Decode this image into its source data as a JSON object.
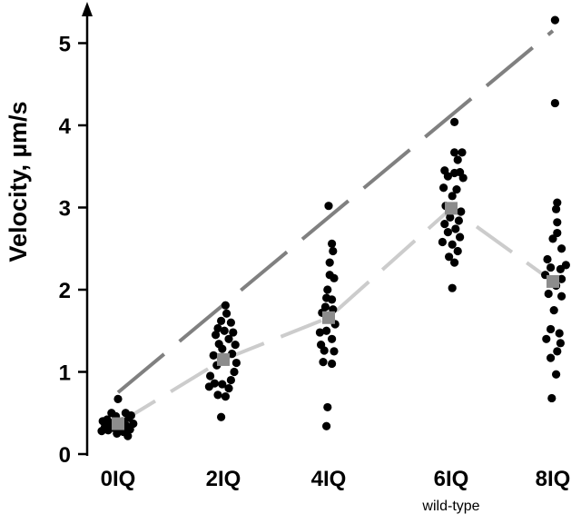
{
  "chart_data": {
    "type": "scatter",
    "title": "",
    "xlabel": "",
    "ylabel": "Velocity, µm/s",
    "ylim": [
      0,
      5.4
    ],
    "yticks": [
      0,
      1,
      2,
      3,
      4,
      5
    ],
    "grid": false,
    "legend": "none",
    "categories": [
      "0IQ",
      "2IQ",
      "4IQ",
      "6IQ",
      "8IQ"
    ],
    "category_sublabels": [
      "",
      "",
      "",
      "wild-type",
      ""
    ],
    "colors": {
      "points": "#000000",
      "mean": "#8c8c8c",
      "mean_line": "#cccccc",
      "trend_line": "#808080"
    },
    "series": [
      {
        "category": "0IQ",
        "points": [
          {
            "offset": 0.0,
            "y": 0.67
          },
          {
            "offset": -0.12,
            "y": 0.5
          },
          {
            "offset": 0.14,
            "y": 0.5
          },
          {
            "offset": 0.24,
            "y": 0.47
          },
          {
            "offset": -0.04,
            "y": 0.46
          },
          {
            "offset": 0.2,
            "y": 0.44
          },
          {
            "offset": -0.2,
            "y": 0.42
          },
          {
            "offset": -0.28,
            "y": 0.4
          },
          {
            "offset": 0.08,
            "y": 0.4
          },
          {
            "offset": -0.14,
            "y": 0.38
          },
          {
            "offset": 0.28,
            "y": 0.37
          },
          {
            "offset": 0.14,
            "y": 0.35
          },
          {
            "offset": -0.24,
            "y": 0.33
          },
          {
            "offset": -0.08,
            "y": 0.32
          },
          {
            "offset": 0.04,
            "y": 0.3
          },
          {
            "offset": 0.22,
            "y": 0.3
          },
          {
            "offset": -0.18,
            "y": 0.29
          },
          {
            "offset": -0.3,
            "y": 0.28
          },
          {
            "offset": 0.1,
            "y": 0.27
          },
          {
            "offset": -0.02,
            "y": 0.25
          },
          {
            "offset": 0.18,
            "y": 0.22
          }
        ],
        "mean": 0.37
      },
      {
        "category": "2IQ",
        "points": [
          {
            "offset": 0.04,
            "y": 1.81
          },
          {
            "offset": 0.06,
            "y": 1.71
          },
          {
            "offset": -0.04,
            "y": 1.62
          },
          {
            "offset": 0.14,
            "y": 1.6
          },
          {
            "offset": -0.1,
            "y": 1.53
          },
          {
            "offset": 0.02,
            "y": 1.5
          },
          {
            "offset": 0.18,
            "y": 1.48
          },
          {
            "offset": -0.14,
            "y": 1.45
          },
          {
            "offset": 0.1,
            "y": 1.4
          },
          {
            "offset": -0.08,
            "y": 1.34
          },
          {
            "offset": 0.22,
            "y": 1.33
          },
          {
            "offset": -0.02,
            "y": 1.28
          },
          {
            "offset": 0.16,
            "y": 1.22
          },
          {
            "offset": -0.18,
            "y": 1.2
          },
          {
            "offset": 0.24,
            "y": 1.11
          },
          {
            "offset": -0.12,
            "y": 1.08
          },
          {
            "offset": 0.2,
            "y": 1.0
          },
          {
            "offset": -0.24,
            "y": 0.95
          },
          {
            "offset": 0.14,
            "y": 0.9
          },
          {
            "offset": -0.16,
            "y": 0.86
          },
          {
            "offset": -0.02,
            "y": 0.85
          },
          {
            "offset": 0.1,
            "y": 0.8
          },
          {
            "offset": -0.26,
            "y": 0.82
          },
          {
            "offset": -0.1,
            "y": 0.72
          },
          {
            "offset": 0.04,
            "y": 0.7
          },
          {
            "offset": -0.04,
            "y": 0.45
          }
        ],
        "mean": 1.15
      },
      {
        "category": "4IQ",
        "points": [
          {
            "offset": 0.0,
            "y": 3.02
          },
          {
            "offset": 0.06,
            "y": 2.56
          },
          {
            "offset": 0.08,
            "y": 2.47
          },
          {
            "offset": 0.02,
            "y": 2.33
          },
          {
            "offset": 0.02,
            "y": 2.18
          },
          {
            "offset": 0.1,
            "y": 2.14
          },
          {
            "offset": -0.02,
            "y": 2.0
          },
          {
            "offset": -0.04,
            "y": 1.9
          },
          {
            "offset": 0.06,
            "y": 1.88
          },
          {
            "offset": -0.06,
            "y": 1.79
          },
          {
            "offset": 0.08,
            "y": 1.76
          },
          {
            "offset": -0.12,
            "y": 1.72
          },
          {
            "offset": 0.12,
            "y": 1.58
          },
          {
            "offset": -0.16,
            "y": 1.48
          },
          {
            "offset": -0.04,
            "y": 1.5
          },
          {
            "offset": 0.06,
            "y": 1.4
          },
          {
            "offset": -0.14,
            "y": 1.33
          },
          {
            "offset": -0.08,
            "y": 1.26
          },
          {
            "offset": 0.1,
            "y": 1.25
          },
          {
            "offset": -0.1,
            "y": 1.12
          },
          {
            "offset": 0.06,
            "y": 1.1
          },
          {
            "offset": -0.02,
            "y": 0.57
          },
          {
            "offset": -0.04,
            "y": 0.34
          }
        ],
        "mean": 1.66
      },
      {
        "category": "6IQ",
        "points": [
          {
            "offset": 0.06,
            "y": 4.04
          },
          {
            "offset": 0.06,
            "y": 3.67
          },
          {
            "offset": 0.2,
            "y": 3.67
          },
          {
            "offset": 0.12,
            "y": 3.58
          },
          {
            "offset": -0.12,
            "y": 3.45
          },
          {
            "offset": 0.06,
            "y": 3.42
          },
          {
            "offset": 0.16,
            "y": 3.43
          },
          {
            "offset": -0.06,
            "y": 3.38
          },
          {
            "offset": 0.22,
            "y": 3.36
          },
          {
            "offset": -0.14,
            "y": 3.24
          },
          {
            "offset": 0.1,
            "y": 3.22
          },
          {
            "offset": 0.02,
            "y": 3.14
          },
          {
            "offset": -0.1,
            "y": 3.02
          },
          {
            "offset": 0.18,
            "y": 2.95
          },
          {
            "offset": -0.02,
            "y": 2.88
          },
          {
            "offset": 0.14,
            "y": 2.84
          },
          {
            "offset": -0.12,
            "y": 2.8
          },
          {
            "offset": 0.08,
            "y": 2.74
          },
          {
            "offset": -0.06,
            "y": 2.7
          },
          {
            "offset": 0.16,
            "y": 2.64
          },
          {
            "offset": -0.16,
            "y": 2.58
          },
          {
            "offset": 0.02,
            "y": 2.55
          },
          {
            "offset": 0.12,
            "y": 2.47
          },
          {
            "offset": -0.04,
            "y": 2.4
          },
          {
            "offset": 0.06,
            "y": 2.33
          },
          {
            "offset": 0.02,
            "y": 2.02
          }
        ],
        "mean": 2.99
      },
      {
        "category": "8IQ",
        "points": [
          {
            "offset": 0.04,
            "y": 5.28
          },
          {
            "offset": 0.04,
            "y": 4.27
          },
          {
            "offset": 0.08,
            "y": 3.06
          },
          {
            "offset": 0.06,
            "y": 2.98
          },
          {
            "offset": 0.08,
            "y": 2.82
          },
          {
            "offset": 0.08,
            "y": 2.69
          },
          {
            "offset": 0.0,
            "y": 2.62
          },
          {
            "offset": 0.16,
            "y": 2.5
          },
          {
            "offset": -0.1,
            "y": 2.37
          },
          {
            "offset": 0.24,
            "y": 2.3
          },
          {
            "offset": -0.04,
            "y": 2.27
          },
          {
            "offset": 0.14,
            "y": 2.25
          },
          {
            "offset": -0.14,
            "y": 2.18
          },
          {
            "offset": 0.16,
            "y": 2.13
          },
          {
            "offset": 0.06,
            "y": 2.05
          },
          {
            "offset": -0.08,
            "y": 1.95
          },
          {
            "offset": 0.16,
            "y": 1.92
          },
          {
            "offset": 0.02,
            "y": 1.75
          },
          {
            "offset": -0.04,
            "y": 1.52
          },
          {
            "offset": 0.12,
            "y": 1.47
          },
          {
            "offset": -0.12,
            "y": 1.4
          },
          {
            "offset": 0.14,
            "y": 1.35
          },
          {
            "offset": 0.08,
            "y": 1.25
          },
          {
            "offset": -0.04,
            "y": 1.17
          },
          {
            "offset": 0.06,
            "y": 0.97
          },
          {
            "offset": -0.02,
            "y": 0.68
          }
        ],
        "mean": 2.1
      }
    ],
    "mean_line": {
      "x": [
        "0IQ",
        "2IQ",
        "4IQ",
        "6IQ",
        "8IQ"
      ],
      "y": [
        0.37,
        1.15,
        1.66,
        2.99,
        2.1
      ]
    },
    "trend_line": {
      "x": [
        "0IQ",
        "8IQ"
      ],
      "y": [
        0.75,
        5.15
      ]
    }
  }
}
